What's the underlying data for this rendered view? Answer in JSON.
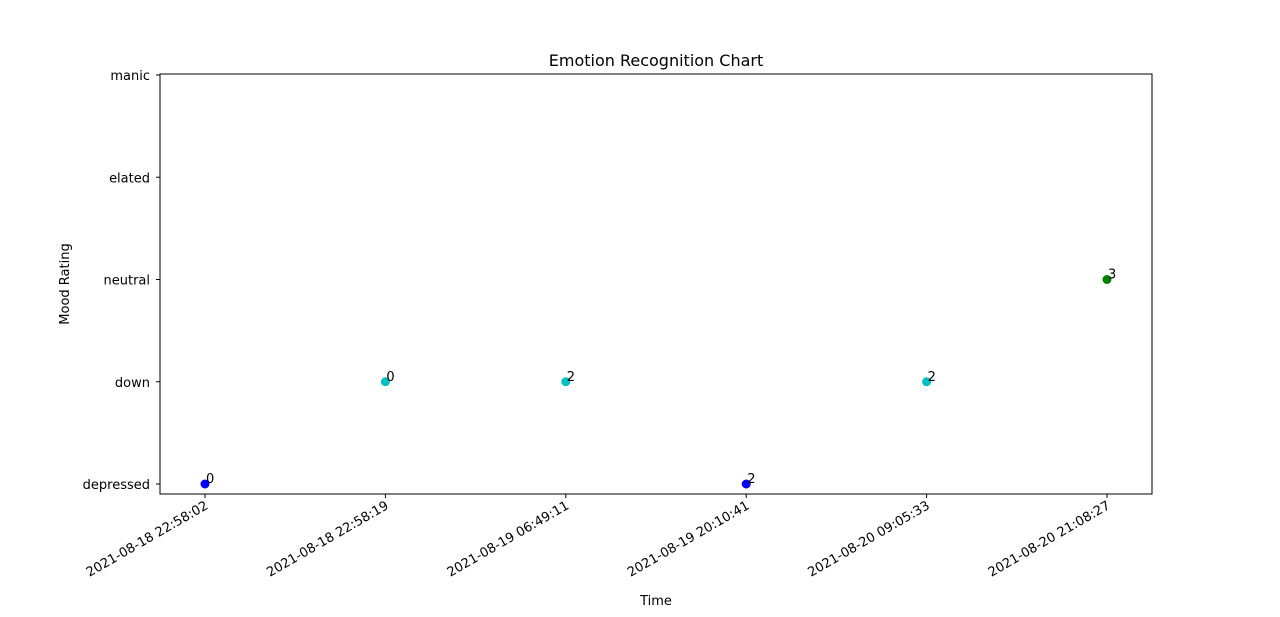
{
  "chart_data": {
    "type": "scatter",
    "title": "Emotion Recognition Chart",
    "xlabel": "Time",
    "ylabel": "Mood Rating",
    "y_categories": [
      "depressed",
      "down",
      "neutral",
      "elated",
      "manic"
    ],
    "x_categories": [
      "2021-08-18 22:58:02",
      "2021-08-18 22:58:19",
      "2021-08-19 06:49:11",
      "2021-08-19 20:10:41",
      "2021-08-20 09:05:33",
      "2021-08-20 21:08:27"
    ],
    "points": [
      {
        "x": "2021-08-18 22:58:02",
        "y": "depressed",
        "label": "0",
        "color": "#0000ff"
      },
      {
        "x": "2021-08-18 22:58:19",
        "y": "down",
        "label": "0",
        "color": "#00bfbf"
      },
      {
        "x": "2021-08-19 06:49:11",
        "y": "down",
        "label": "2",
        "color": "#00bfbf"
      },
      {
        "x": "2021-08-19 20:10:41",
        "y": "depressed",
        "label": "2",
        "color": "#0000ff"
      },
      {
        "x": "2021-08-20 09:05:33",
        "y": "down",
        "label": "2",
        "color": "#00bfbf"
      },
      {
        "x": "2021-08-20 21:08:27",
        "y": "neutral",
        "label": "3",
        "color": "#008000"
      }
    ],
    "grid": false,
    "legend": "none"
  }
}
